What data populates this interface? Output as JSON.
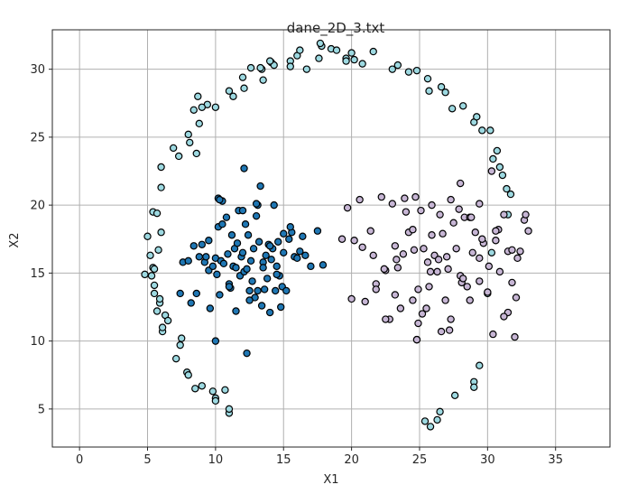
{
  "chart_data": {
    "type": "scatter",
    "title": "dane_2D_3.txt",
    "xlabel": "X1",
    "ylabel": "X2",
    "xlim": [
      -2,
      39
    ],
    "ylim": [
      2.2,
      32.9
    ],
    "xticks": [
      0,
      5,
      10,
      15,
      20,
      25,
      30,
      35
    ],
    "yticks": [
      5,
      10,
      15,
      20,
      25,
      30
    ],
    "grid": true,
    "series": [
      {
        "color": "#9dd9e1",
        "x": [
          4.8,
          5.0,
          5.2,
          5.4,
          5.3,
          5.5,
          5.4,
          5.7,
          5.8,
          6.0,
          5.9,
          6.3,
          5.7,
          6.1,
          7.4,
          7.1,
          7.9,
          8.0,
          8.5,
          8.4,
          8.8,
          9.4,
          10.0,
          11.0,
          11.3,
          12.0,
          12.1,
          13.4,
          13.5,
          14.1,
          14.3,
          15.5,
          16.0,
          16.7,
          17.6,
          17.8,
          18.5,
          19.6,
          20.0,
          20.2,
          20.8,
          21.6,
          23.0,
          23.4,
          24.2,
          24.8,
          25.6,
          25.7,
          26.6,
          26.9,
          27.4,
          28.2,
          29.0,
          29.2,
          29.6,
          30.2,
          30.4,
          30.7,
          30.9,
          31.1,
          31.4,
          31.7,
          31.5,
          30.3,
          30.0,
          29.4,
          29.0,
          29.0,
          27.6,
          26.5,
          26.3,
          25.8,
          25.4,
          24.8,
          7.5,
          6.5,
          6.0,
          6.9,
          8.1,
          8.0,
          8.7,
          9.0,
          9.8,
          10.0,
          10.7,
          11.0,
          12.6,
          13.3,
          14.0,
          15.5,
          16.2,
          17.7,
          18.9,
          19.6,
          5.5,
          5.5,
          5.9,
          6.1,
          6.0,
          7.3,
          8.6,
          9.0,
          10.0,
          11.0
        ],
        "y": [
          14.9,
          17.7,
          16.3,
          15.4,
          14.8,
          13.5,
          19.5,
          19.4,
          16.7,
          18.0,
          12.8,
          11.9,
          12.2,
          10.7,
          9.7,
          8.7,
          7.7,
          7.5,
          6.5,
          27.0,
          26.0,
          27.4,
          27.2,
          28.4,
          28.0,
          29.4,
          28.6,
          30.0,
          29.2,
          30.5,
          30.3,
          30.6,
          31.0,
          30.0,
          30.8,
          31.7,
          31.5,
          30.8,
          31.2,
          30.7,
          30.4,
          31.3,
          30.0,
          30.3,
          29.8,
          29.9,
          29.3,
          28.4,
          28.7,
          28.3,
          27.1,
          27.3,
          26.1,
          26.5,
          25.5,
          25.5,
          23.4,
          24.0,
          22.8,
          22.2,
          21.2,
          20.8,
          19.3,
          16.5,
          13.5,
          8.2,
          7.0,
          6.6,
          6.0,
          4.8,
          4.2,
          3.7,
          4.1,
          10.1,
          10.2,
          11.5,
          22.8,
          24.2,
          24.6,
          25.2,
          28.0,
          6.7,
          6.3,
          5.8,
          6.4,
          4.7,
          30.1,
          30.1,
          30.6,
          30.2,
          31.4,
          31.9,
          31.4,
          30.6,
          15.3,
          14.1,
          13.1,
          11.0,
          21.3,
          23.6,
          23.8,
          27.2,
          5.6,
          5.0
        ]
      },
      {
        "color": "#1f77b4",
        "x": [
          7.4,
          7.6,
          8.0,
          8.2,
          8.4,
          8.6,
          8.8,
          9.0,
          9.2,
          9.3,
          9.5,
          9.6,
          9.8,
          10.0,
          10.1,
          10.2,
          10.3,
          10.4,
          10.5,
          10.6,
          10.8,
          10.9,
          11.0,
          11.1,
          11.2,
          11.3,
          11.4,
          11.5,
          11.6,
          11.7,
          11.8,
          11.9,
          12.0,
          12.1,
          12.2,
          12.3,
          12.4,
          12.5,
          12.6,
          12.7,
          12.8,
          12.9,
          13.0,
          13.1,
          13.2,
          13.3,
          13.4,
          13.5,
          13.6,
          13.7,
          13.8,
          13.9,
          14.0,
          14.1,
          14.2,
          14.3,
          14.4,
          14.5,
          14.6,
          14.7,
          14.8,
          14.9,
          15.0,
          15.2,
          15.4,
          15.6,
          15.8,
          16.0,
          16.2,
          16.4,
          16.6,
          17.0,
          17.5,
          17.9,
          10.2,
          10.5,
          11.0,
          11.5,
          12.0,
          12.5,
          13.0,
          13.5,
          14.0,
          14.5,
          15.0,
          15.5,
          12.3,
          13.1,
          10.0,
          12.1,
          10.3,
          9.5
        ],
        "y": [
          13.5,
          15.8,
          15.9,
          12.8,
          17.0,
          13.5,
          16.2,
          17.1,
          15.8,
          16.2,
          15.2,
          12.4,
          15.5,
          16.1,
          14.9,
          18.4,
          13.4,
          15.9,
          20.3,
          15.7,
          19.1,
          16.4,
          14.2,
          13.9,
          17.8,
          15.5,
          16.8,
          15.4,
          17.2,
          19.6,
          14.8,
          16.2,
          16.5,
          15.1,
          18.6,
          15.3,
          17.8,
          13.7,
          15.9,
          14.4,
          16.8,
          13.2,
          19.2,
          20.0,
          17.3,
          21.4,
          12.6,
          15.8,
          13.8,
          16.3,
          14.6,
          17.1,
          12.1,
          16.0,
          16.8,
          20.0,
          13.7,
          15.5,
          17.3,
          14.8,
          12.5,
          14.0,
          16.5,
          13.7,
          17.5,
          18.0,
          16.2,
          16.1,
          16.6,
          17.7,
          16.3,
          15.5,
          18.1,
          15.6,
          20.5,
          18.6,
          14.0,
          12.2,
          19.6,
          13.0,
          20.1,
          15.4,
          17.0,
          14.9,
          17.9,
          18.4,
          9.1,
          13.7,
          10.0,
          22.7,
          20.4,
          17.4
        ],
        "note": ""
      },
      {
        "color": "#c7b6d5",
        "x": [
          19.3,
          19.7,
          20.0,
          20.2,
          20.6,
          21.0,
          21.4,
          21.8,
          22.2,
          22.5,
          22.8,
          23.0,
          23.3,
          23.6,
          23.9,
          24.2,
          24.5,
          24.7,
          24.9,
          25.1,
          25.3,
          25.5,
          25.7,
          25.9,
          26.1,
          26.3,
          26.5,
          26.7,
          26.9,
          27.1,
          27.3,
          27.5,
          27.7,
          27.9,
          28.1,
          28.3,
          28.5,
          28.7,
          28.9,
          29.1,
          29.4,
          29.7,
          30.0,
          30.3,
          30.6,
          30.9,
          31.2,
          31.5,
          31.8,
          32.1,
          32.4,
          32.7,
          33.0,
          21.8,
          22.5,
          23.2,
          23.8,
          24.5,
          25.2,
          25.9,
          26.6,
          27.3,
          28.0,
          28.7,
          29.4,
          30.1,
          30.8,
          31.5,
          32.2,
          20.8,
          21.6,
          22.4,
          23.2,
          24.0,
          24.8,
          25.6,
          26.4,
          27.2,
          28.0,
          28.8,
          29.6,
          30.4,
          31.2,
          32.0,
          32.8,
          24.6,
          25.8,
          27.0,
          28.2,
          29.4,
          30.6,
          31.8,
          23.4,
          24.9
        ],
        "y": [
          17.5,
          19.8,
          13.1,
          17.4,
          20.4,
          12.9,
          18.1,
          14.2,
          20.6,
          15.2,
          11.6,
          20.1,
          16.0,
          12.4,
          20.5,
          18.0,
          13.0,
          20.6,
          11.3,
          19.6,
          16.8,
          12.4,
          14.0,
          20.0,
          16.3,
          15.1,
          19.3,
          17.9,
          13.0,
          15.3,
          20.4,
          18.7,
          16.8,
          19.7,
          14.3,
          19.1,
          14.0,
          13.0,
          16.5,
          18.0,
          20.1,
          17.2,
          13.6,
          22.5,
          17.4,
          15.1,
          19.3,
          16.6,
          14.3,
          13.2,
          16.6,
          18.9,
          18.1,
          13.8,
          11.6,
          17.0,
          16.4,
          18.2,
          12.0,
          17.8,
          10.7,
          11.6,
          14.8,
          19.1,
          16.1,
          15.5,
          18.2,
          12.1,
          16.1,
          16.9,
          16.3,
          15.3,
          13.4,
          19.5,
          10.1,
          15.8,
          16.0,
          10.8,
          21.6,
          19.1,
          17.5,
          10.5,
          11.8,
          10.3,
          19.3,
          16.7,
          15.1,
          16.2,
          14.6,
          14.4,
          18.1,
          16.7,
          15.4,
          13.8
        ],
        "note": ""
      }
    ]
  }
}
